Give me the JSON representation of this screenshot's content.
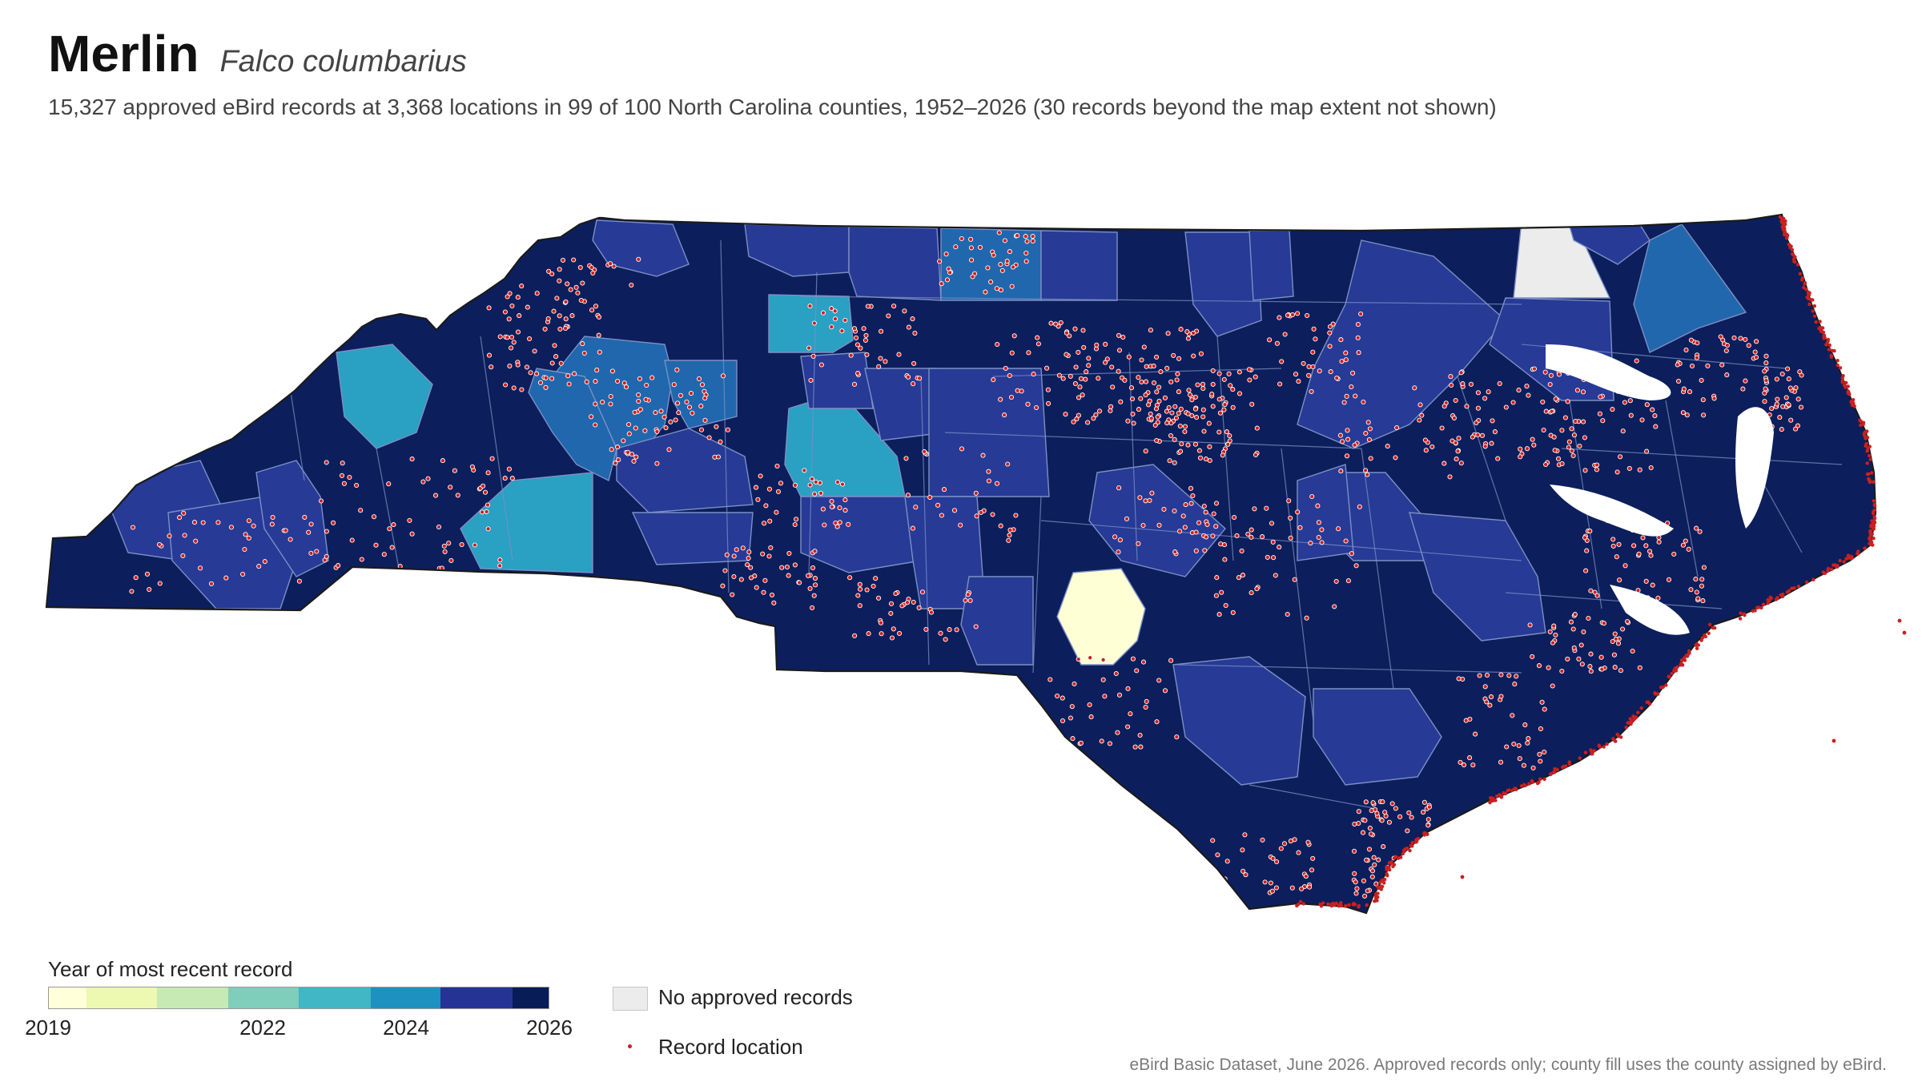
{
  "header": {
    "title": "Merlin",
    "species": "Falco columbarius",
    "caption": "15,327 approved eBird records at 3,368 locations in 99 of 100 North Carolina counties, 1952–2026 (30 records beyond the map extent not shown)"
  },
  "legend": {
    "title": "Year of most recent record",
    "color_stops": [
      "#ffffd9",
      "#edf8b1",
      "#c7e9b4",
      "#7fcdbb",
      "#41b6c4",
      "#1d91c0",
      "#225ea8",
      "#253494",
      "#081d58"
    ],
    "ticks": [
      "2019",
      "2022",
      "2024",
      "2026"
    ],
    "no_data_label": "No approved records",
    "record_label": "Record location"
  },
  "colors": {
    "state_dark": "#0c1f5c",
    "mid_blue": "#263a96",
    "steel_blue": "#2067ad",
    "teal": "#2aa0c2",
    "pale_yellow": "#ffffd6",
    "no_data": "#ececec",
    "record_dot": "#cc1f1f",
    "county_line": "#7d8fc4"
  },
  "footer": {
    "source": "eBird Basic Dataset, June 2026. Approved records only; county fill uses the county assigned by eBird."
  }
}
